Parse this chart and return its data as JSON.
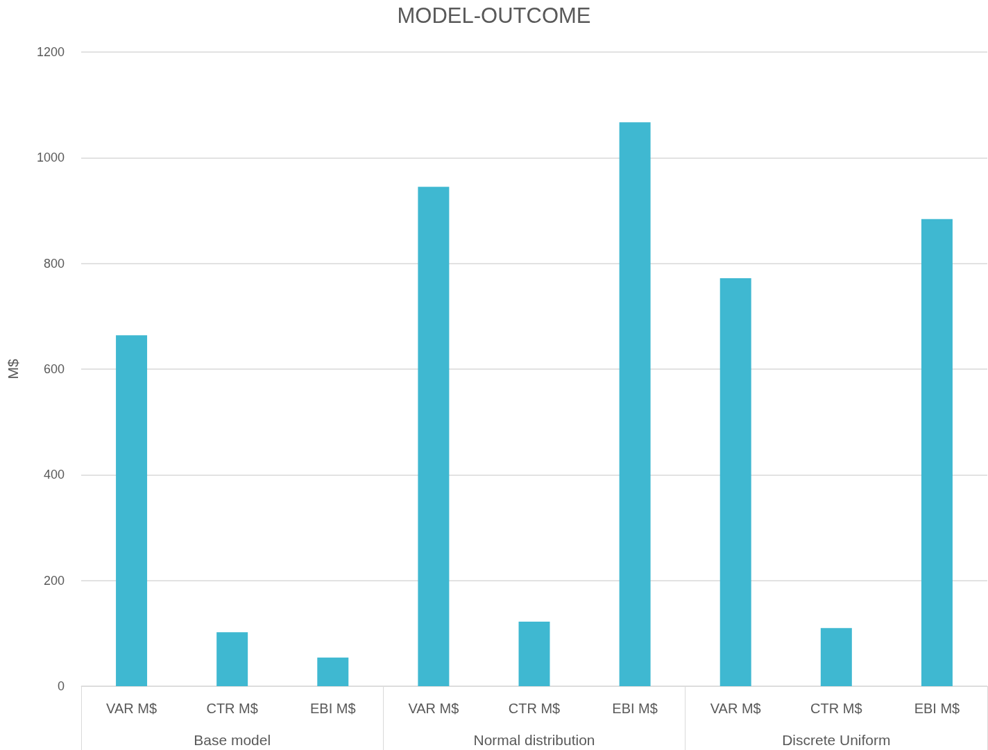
{
  "chart_data": {
    "type": "bar",
    "title": "MODEL-OUTCOME",
    "ylabel": "M$",
    "categories": [
      "VAR M$",
      "CTR M$",
      "EBI M$",
      "VAR M$",
      "CTR M$",
      "EBI M$",
      "VAR M$",
      "CTR M$",
      "EBI M$"
    ],
    "values": [
      664,
      102,
      54,
      945,
      122,
      1067,
      772,
      110,
      884
    ],
    "color": "#3fb8d1",
    "ylim": [
      0,
      1200
    ],
    "yticks": [
      0,
      200,
      400,
      600,
      800,
      1000,
      1200
    ],
    "grid": "y",
    "annotations": [
      "Base model",
      "Normal distribution",
      "Discrete Uniform"
    ]
  }
}
